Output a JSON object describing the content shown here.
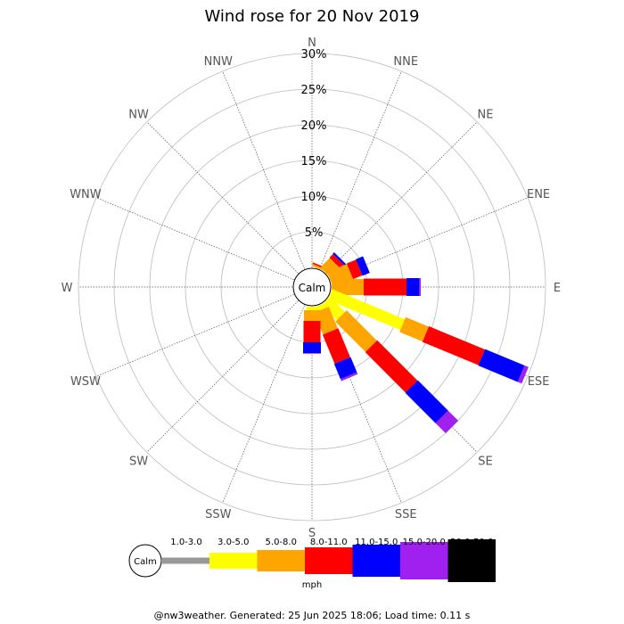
{
  "title": "Wind rose for 20 Nov 2019",
  "calm_label": "Calm",
  "directions": [
    "N",
    "NNE",
    "NE",
    "ENE",
    "E",
    "ESE",
    "SE",
    "SSE",
    "S",
    "SSW",
    "SW",
    "WSW",
    "W",
    "WNW",
    "NW",
    "NNW"
  ],
  "radial_ticks": [
    "5%",
    "10%",
    "15%",
    "20%",
    "25%",
    "30%"
  ],
  "legend": {
    "calm": "Calm",
    "unit": "mph",
    "bins": [
      {
        "label": "1.0-3.0",
        "color": "#999999"
      },
      {
        "label": "3.0-5.0",
        "color": "#ffff00"
      },
      {
        "label": "5.0-8.0",
        "color": "#ffa500"
      },
      {
        "label": "8.0-11.0",
        "color": "#ff0000"
      },
      {
        "label": "11.0-15.0",
        "color": "#0000ff"
      },
      {
        "label": "15.0-20.0",
        "color": "#a020f0"
      },
      {
        "label": "20.0-50.0",
        "color": "#000000"
      }
    ]
  },
  "footer": "@nw3weather. Generated: 25 Jun 2025 18:06; Load time: 0.11 s",
  "chart_data": {
    "type": "windrose",
    "title": "Wind rose for 20 Nov 2019",
    "unit": "mph",
    "rmax_percent": 30,
    "speed_bins": [
      "1.0-3.0",
      "3.0-5.0",
      "5.0-8.0",
      "8.0-11.0",
      "11.0-15.0",
      "15.0-20.0",
      "20.0-50.0"
    ],
    "sectors": [
      {
        "dir": "N",
        "cumulative": [
          0,
          0,
          0,
          0,
          0,
          0,
          0
        ]
      },
      {
        "dir": "NNE",
        "cumulative": [
          0,
          0,
          0.3,
          0.5,
          0.5,
          0.5,
          0.5
        ]
      },
      {
        "dir": "NE",
        "cumulative": [
          0,
          0,
          1.9,
          2.6,
          2.9,
          2.9,
          2.9
        ]
      },
      {
        "dir": "ENE",
        "cumulative": [
          0,
          0,
          3.0,
          4.4,
          5.5,
          5.5,
          5.5
        ]
      },
      {
        "dir": "E",
        "cumulative": [
          0,
          0,
          4.5,
          10.5,
          12.3,
          12.5,
          12.5
        ]
      },
      {
        "dir": "ESE",
        "cumulative": [
          0,
          11.0,
          14.5,
          23.0,
          29.0,
          29.6,
          29.6
        ]
      },
      {
        "dir": "SE",
        "cumulative": [
          0,
          3.0,
          9.0,
          17.0,
          23.0,
          25.0,
          25.0
        ]
      },
      {
        "dir": "SSE",
        "cumulative": [
          0,
          0.7,
          4.0,
          8.4,
          10.7,
          11.0,
          11.0
        ]
      },
      {
        "dir": "S",
        "cumulative": [
          0,
          0.5,
          2.0,
          5.0,
          6.5,
          6.6,
          6.6
        ]
      },
      {
        "dir": "SSW",
        "cumulative": [
          0,
          0,
          0,
          0,
          0,
          0,
          0
        ]
      },
      {
        "dir": "SW",
        "cumulative": [
          0,
          0,
          0,
          0,
          0,
          0,
          0
        ]
      },
      {
        "dir": "WSW",
        "cumulative": [
          0,
          0,
          0,
          0,
          0,
          0,
          0
        ]
      },
      {
        "dir": "W",
        "cumulative": [
          0,
          0,
          0,
          0,
          0,
          0,
          0
        ]
      },
      {
        "dir": "WNW",
        "cumulative": [
          0,
          0,
          0,
          0,
          0,
          0,
          0
        ]
      },
      {
        "dir": "NW",
        "cumulative": [
          0,
          0,
          0,
          0,
          0,
          0,
          0
        ]
      },
      {
        "dir": "NNW",
        "cumulative": [
          0,
          0,
          0,
          0,
          0,
          0,
          0
        ]
      }
    ]
  }
}
